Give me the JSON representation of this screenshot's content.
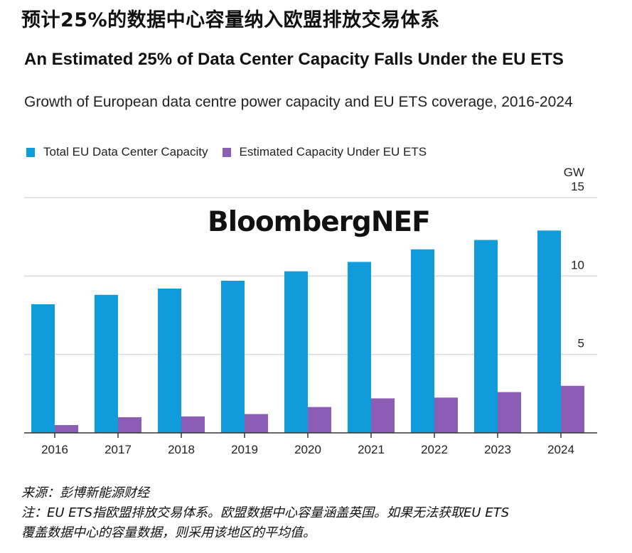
{
  "headline_cn": "预计25%的数据中心容量纳入欧盟排放交易体系",
  "logo_text": "BloombergNEF",
  "footer": {
    "source": "来源：彭博新能源财经",
    "note_line1": "注：EU ETS指欧盟排放交易体系。欧盟数据中心容量涵盖英国。如果无法获取EU ETS",
    "note_line2": "覆盖数据中心的容量数据，则采用该地区的平均值。"
  },
  "colors": {
    "total": "#109cdb",
    "ets": "#8c5db4",
    "grid": "#d9d9d9",
    "axis": "#333333"
  },
  "chart_data": {
    "type": "bar",
    "title": "An Estimated 25% of Data Center Capacity Falls Under the EU ETS",
    "subtitle": "Growth of European data centre power capacity and EU ETS coverage, 2016-2024",
    "xlabel": "",
    "ylabel": "GW",
    "ylim": [
      0,
      15
    ],
    "yticks": [
      0,
      5,
      10,
      15
    ],
    "grid": true,
    "legend_position": "top-left",
    "y_axis_side": "right",
    "categories": [
      "2016",
      "2017",
      "2018",
      "2019",
      "2020",
      "2021",
      "2022",
      "2023",
      "2024"
    ],
    "series": [
      {
        "name": "Total EU Data Center Capacity",
        "color": "#109cdb",
        "values": [
          8.2,
          8.8,
          9.2,
          9.7,
          10.3,
          10.9,
          11.7,
          12.3,
          12.9
        ]
      },
      {
        "name": "Estimated Capacity Under EU ETS",
        "color": "#8c5db4",
        "values": [
          0.5,
          1.0,
          1.05,
          1.2,
          1.65,
          2.2,
          2.25,
          2.6,
          3.0
        ]
      }
    ]
  }
}
